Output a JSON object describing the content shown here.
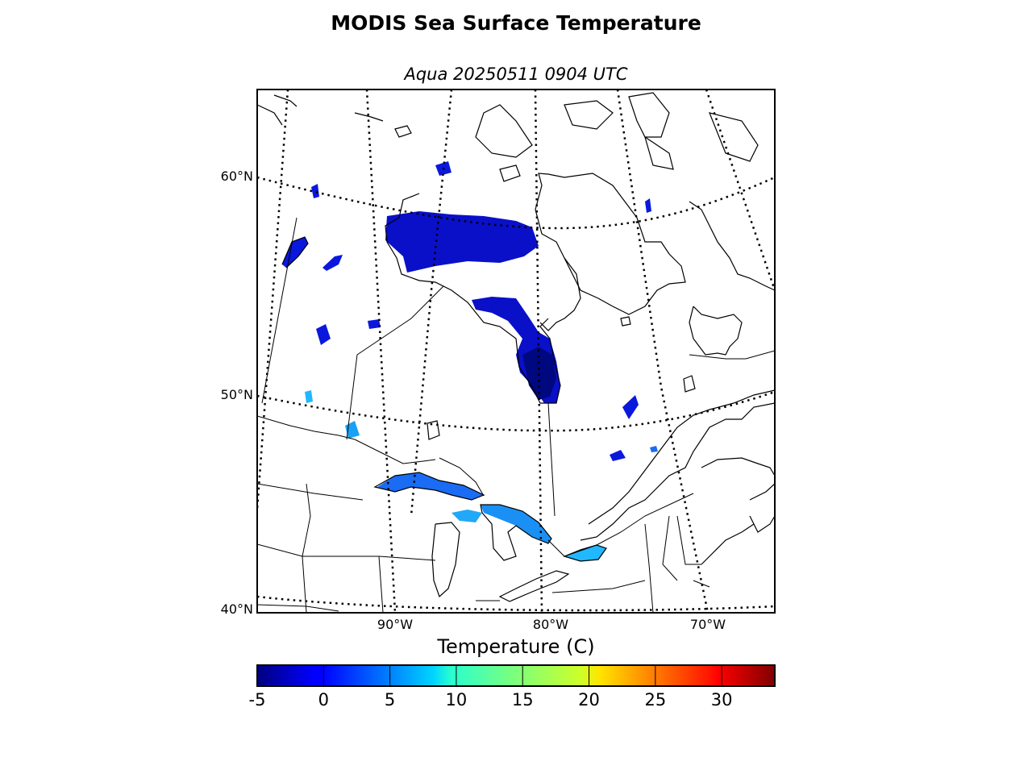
{
  "title": "MODIS Sea Surface Temperature",
  "subtitle": "Aqua 20250511 0904 UTC",
  "latitude_labels": [
    "60°N",
    "50°N",
    "40°N"
  ],
  "longitude_labels": [
    "90°W",
    "80°W",
    "70°W"
  ],
  "colorbar": {
    "title": "Temperature (C)",
    "min": -5,
    "max": 34,
    "ticks": [
      -5,
      0,
      5,
      10,
      15,
      20,
      25,
      30
    ],
    "tick_labels": [
      "-5",
      "0",
      "5",
      "10",
      "15",
      "20",
      "25",
      "30"
    ],
    "colormap": "jet"
  },
  "colors": {
    "land_outline": "#000000",
    "background": "#ffffff"
  }
}
